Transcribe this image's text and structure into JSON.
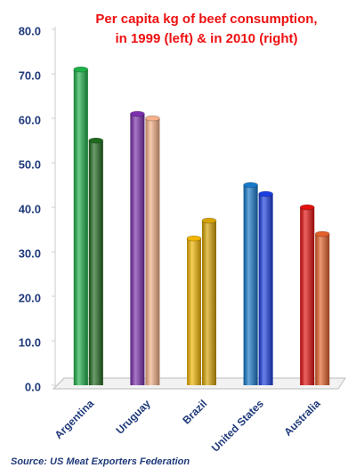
{
  "chart_data": {
    "type": "bar",
    "title": [
      "Per capita kg of beef consumption,",
      "in 1999 (left) & in 2010 (right)"
    ],
    "categories": [
      "Argentina",
      "Uruguay",
      "Brazil",
      "United States",
      "Australia"
    ],
    "series": [
      {
        "values": [
          71,
          61,
          33,
          45,
          40
        ],
        "colors": [
          "#1fb04a",
          "#7b2fae",
          "#f2b600",
          "#1679c9",
          "#e3100e"
        ]
      },
      {
        "values": [
          55,
          60,
          37,
          43,
          34
        ],
        "colors": [
          "#1f6a1f",
          "#f6b088",
          "#d7a400",
          "#1a3ee0",
          "#e4602a"
        ]
      }
    ],
    "ylim": [
      0,
      80
    ],
    "yticks": [
      {
        "value": 0,
        "label": "0.0"
      },
      {
        "value": 10,
        "label": "10.0"
      },
      {
        "value": 20,
        "label": "20.0"
      },
      {
        "value": 30,
        "label": "30.0"
      },
      {
        "value": 40,
        "label": "40.0"
      },
      {
        "value": 50,
        "label": "50.0"
      },
      {
        "value": 60,
        "label": "60.0"
      },
      {
        "value": 70,
        "label": "70.0"
      },
      {
        "value": 80,
        "label": "80.0"
      }
    ],
    "source": "Source: US Meat Exporters Federation"
  }
}
